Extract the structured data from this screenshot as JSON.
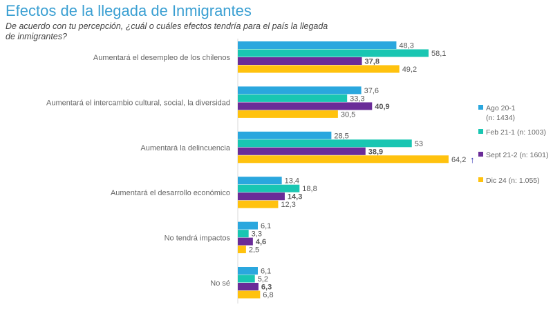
{
  "title": "Efectos de la llegada de Inmigrantes",
  "subtitle": "De acuerdo con tu percepción, ¿cuál o cuáles efectos tendría para el país la llegada de inmigrantes?",
  "chart_data": {
    "type": "bar",
    "orientation": "horizontal",
    "categories": [
      "Aumentará el desempleo de los chilenos",
      "Aumentará el intercambio cultural, social, la diversidad",
      "Aumentará la delincuencia",
      "Aumentará el desarrollo económico",
      "No tendrá impactos",
      "No sé"
    ],
    "series": [
      {
        "name": "Ago 20-1 (n: 1434)",
        "legend_lines": [
          "Ago 20-1",
          "(n: 1434)"
        ],
        "color": "#2aa7de",
        "values": [
          48.3,
          37.6,
          28.5,
          13.4,
          6.1,
          6.1
        ],
        "labels": [
          "48,3",
          "37,6",
          "28,5",
          "13,4",
          "6,1",
          "6,1"
        ],
        "bold": false
      },
      {
        "name": "Feb 21-1 (n: 1003)",
        "legend_lines": [
          "Feb 21-1 (n: 1003)"
        ],
        "color": "#19c6b2",
        "values": [
          58.1,
          33.3,
          53,
          18.8,
          3.3,
          5.2
        ],
        "labels": [
          "58,1",
          "33,3",
          "53",
          "18,8",
          "3,3",
          "5,2"
        ],
        "bold": false
      },
      {
        "name": "Sept 21-2 (n: 1601)",
        "legend_lines": [
          "Sept 21-2 (n: 1601)"
        ],
        "color": "#6a2c98",
        "values": [
          37.8,
          40.9,
          38.9,
          14.3,
          4.6,
          6.3
        ],
        "labels": [
          "37,8",
          "40,9",
          "38,9",
          "14,3",
          "4,6",
          "6,3"
        ],
        "bold": true
      },
      {
        "name": "Dic 24 (n: 1.055)",
        "legend_lines": [
          "Dic 24 (n: 1.055)"
        ],
        "color": "#ffc20e",
        "values": [
          49.2,
          30.5,
          64.2,
          12.3,
          2.5,
          6.8
        ],
        "labels": [
          "49,2",
          "30,5",
          "64,2",
          "12,3",
          "2,5",
          "6,8"
        ],
        "bold": false
      }
    ],
    "annotations": [
      {
        "category": "Aumentará la delincuencia",
        "series": "Dic 24 (n: 1.055)",
        "icon": "up-arrow-icon",
        "color": "#2a2ab0"
      }
    ],
    "legend": "right",
    "grid": false
  }
}
